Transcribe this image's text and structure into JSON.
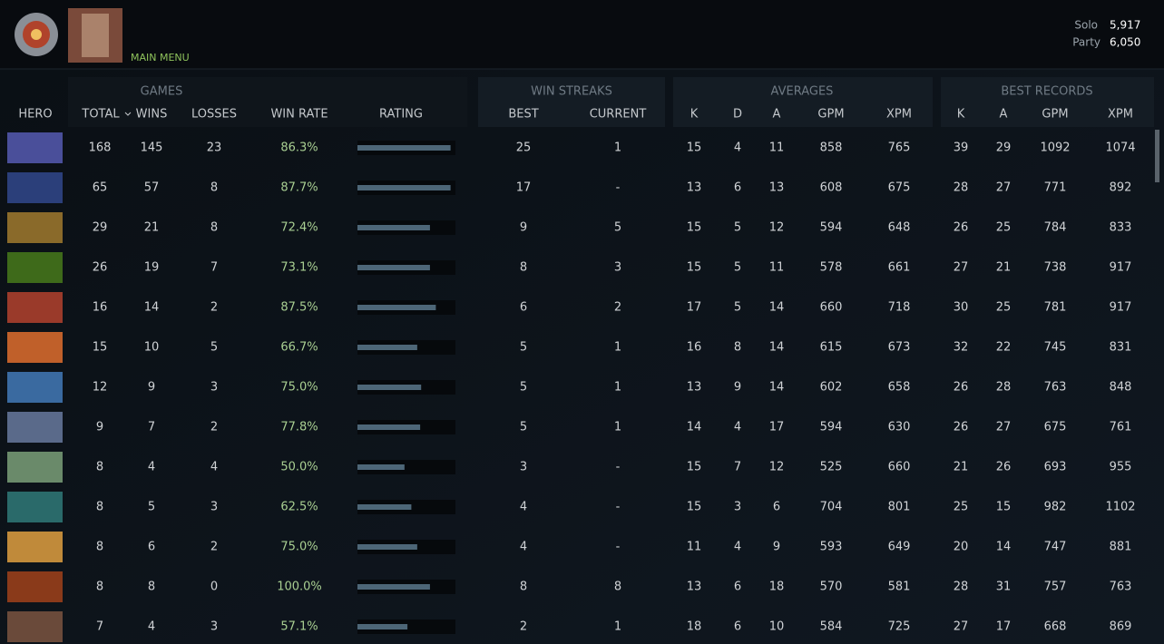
{
  "header": {
    "menu": "MAIN MENU",
    "solo_label": "Solo",
    "solo_value": "5,917",
    "party_label": "Party",
    "party_value": "6,050"
  },
  "table": {
    "groups": [
      "GAMES",
      "WIN STREAKS",
      "AVERAGES",
      "BEST RECORDS"
    ],
    "hero_header": "HERO",
    "columns": [
      "TOTAL",
      "WINS",
      "LOSSES",
      "WIN RATE",
      "RATING",
      "BEST",
      "CURRENT",
      "K",
      "D",
      "A",
      "GPM",
      "XPM",
      "K",
      "A",
      "GPM",
      "XPM"
    ],
    "rating_range": [
      0,
      100
    ],
    "rows": [
      [
        168,
        145,
        23,
        "86.3%",
        95,
        25,
        1,
        15,
        4,
        11,
        858,
        765,
        39,
        29,
        1092,
        1074
      ],
      [
        65,
        57,
        8,
        "87.7%",
        95,
        17,
        "-",
        13,
        6,
        13,
        608,
        675,
        28,
        27,
        771,
        892
      ],
      [
        29,
        21,
        8,
        "72.4%",
        74,
        9,
        5,
        15,
        5,
        12,
        594,
        648,
        26,
        25,
        784,
        833
      ],
      [
        26,
        19,
        7,
        "73.1%",
        74,
        8,
        3,
        15,
        5,
        11,
        578,
        661,
        27,
        21,
        738,
        917
      ],
      [
        16,
        14,
        2,
        "87.5%",
        80,
        6,
        2,
        17,
        5,
        14,
        660,
        718,
        30,
        25,
        781,
        917
      ],
      [
        15,
        10,
        5,
        "66.7%",
        61,
        5,
        1,
        16,
        8,
        14,
        615,
        673,
        32,
        22,
        745,
        831
      ],
      [
        12,
        9,
        3,
        "75.0%",
        65,
        5,
        1,
        13,
        9,
        14,
        602,
        658,
        26,
        28,
        763,
        848
      ],
      [
        9,
        7,
        2,
        "77.8%",
        64,
        5,
        1,
        14,
        4,
        17,
        594,
        630,
        26,
        27,
        675,
        761
      ],
      [
        8,
        4,
        4,
        "50.0%",
        48,
        3,
        "-",
        15,
        7,
        12,
        525,
        660,
        21,
        26,
        693,
        955
      ],
      [
        8,
        5,
        3,
        "62.5%",
        55,
        4,
        "-",
        15,
        3,
        6,
        704,
        801,
        25,
        15,
        982,
        1102
      ],
      [
        8,
        6,
        2,
        "75.0%",
        61,
        4,
        "-",
        11,
        4,
        9,
        593,
        649,
        20,
        14,
        747,
        881
      ],
      [
        8,
        8,
        0,
        "100.0%",
        74,
        8,
        8,
        13,
        6,
        18,
        570,
        581,
        28,
        31,
        757,
        763
      ],
      [
        7,
        4,
        3,
        "57.1%",
        51,
        2,
        1,
        18,
        6,
        10,
        584,
        725,
        27,
        17,
        668,
        869
      ]
    ]
  }
}
